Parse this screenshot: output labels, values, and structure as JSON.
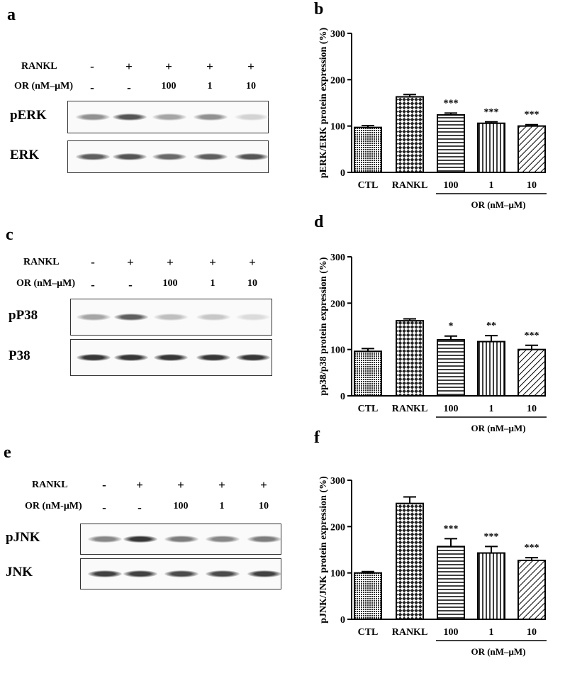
{
  "panels": {
    "a": "a",
    "b": "b",
    "c": "c",
    "d": "d",
    "e": "e",
    "f": "f"
  },
  "blots": [
    {
      "rankl_label": "RANKL",
      "or_label": "OR (nM–μM)",
      "rankl": [
        "-",
        "+",
        "+",
        "+",
        "+"
      ],
      "or": [
        "-",
        "-",
        "100",
        "1",
        "10"
      ],
      "bands": [
        {
          "name": "pERK",
          "intensity": [
            0.45,
            0.75,
            0.35,
            0.45,
            0.12
          ]
        },
        {
          "name": "ERK",
          "intensity": [
            0.7,
            0.75,
            0.65,
            0.7,
            0.75
          ]
        }
      ]
    },
    {
      "rankl_label": "RANKL",
      "or_label": "OR (nM–μM)",
      "rankl": [
        "-",
        "+",
        "+",
        "+",
        "+"
      ],
      "or": [
        "-",
        "-",
        "100",
        "1",
        "10"
      ],
      "bands": [
        {
          "name": "pP38",
          "intensity": [
            0.35,
            0.7,
            0.22,
            0.18,
            0.08
          ]
        },
        {
          "name": "P38",
          "intensity": [
            0.9,
            0.9,
            0.9,
            0.9,
            0.9
          ]
        }
      ]
    },
    {
      "rankl_label": "RANKL",
      "or_label": "OR (nM-μM)",
      "rankl": [
        "-",
        "+",
        "+",
        "+",
        "+"
      ],
      "or": [
        "-",
        "-",
        "100",
        "1",
        "10"
      ],
      "bands": [
        {
          "name": "pJNK",
          "intensity": [
            0.5,
            0.9,
            0.55,
            0.5,
            0.55
          ]
        },
        {
          "name": "JNK",
          "intensity": [
            0.85,
            0.85,
            0.8,
            0.8,
            0.85
          ]
        }
      ]
    }
  ],
  "chart_data": [
    {
      "type": "bar",
      "ylabel": "pERK/ERK protein expression (%)",
      "categories": [
        "CTL",
        "RANKL",
        "100",
        "1",
        "10"
      ],
      "values": [
        97,
        163,
        124,
        106,
        100
      ],
      "errors": [
        4,
        5,
        4,
        3,
        3
      ],
      "significance": [
        "",
        "",
        "***",
        "***",
        "***"
      ],
      "patterns": [
        "dots",
        "checker",
        "hlines",
        "vlines",
        "diag"
      ],
      "group_label": "OR (nM–μM)",
      "yticks": [
        0,
        100,
        200,
        300
      ],
      "ylim": [
        0,
        300
      ]
    },
    {
      "type": "bar",
      "ylabel": "pp38/p38 protein expression (%)",
      "categories": [
        "CTL",
        "RANKL",
        "100",
        "1",
        "10"
      ],
      "values": [
        96,
        162,
        121,
        117,
        100
      ],
      "errors": [
        6,
        4,
        8,
        13,
        9
      ],
      "significance": [
        "",
        "",
        "*",
        "**",
        "***"
      ],
      "patterns": [
        "dots",
        "checker",
        "hlines",
        "vlines",
        "diag"
      ],
      "group_label": "OR (nM–μM)",
      "yticks": [
        0,
        100,
        200,
        300
      ],
      "ylim": [
        0,
        300
      ]
    },
    {
      "type": "bar",
      "ylabel": "pJNK/JNK protein expression (%)",
      "categories": [
        "CTL",
        "RANKL",
        "100",
        "1",
        "10"
      ],
      "values": [
        100,
        250,
        157,
        143,
        127
      ],
      "errors": [
        3,
        14,
        17,
        14,
        6
      ],
      "significance": [
        "",
        "",
        "***",
        "***",
        "***"
      ],
      "patterns": [
        "dots",
        "checker",
        "hlines",
        "vlines",
        "diag"
      ],
      "group_label": "OR (nM–μM)",
      "yticks": [
        0,
        100,
        200,
        300
      ],
      "ylim": [
        0,
        300
      ]
    }
  ]
}
